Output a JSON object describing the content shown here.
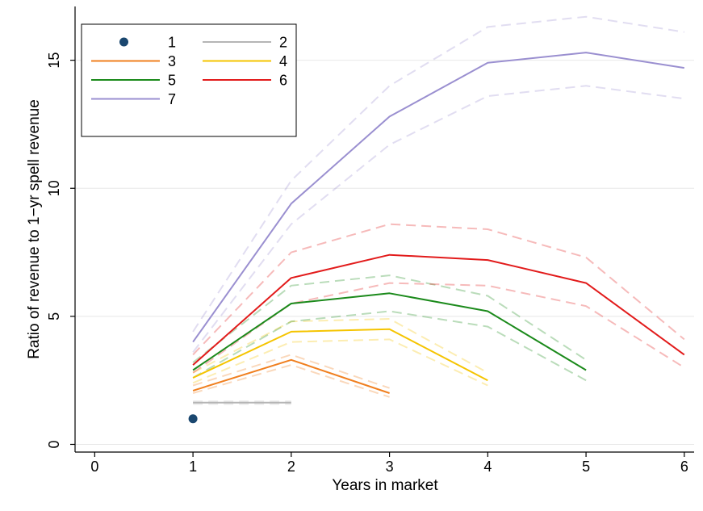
{
  "chart_data": {
    "type": "line",
    "title": "",
    "xlabel": "Years in market",
    "ylabel": "Ratio of revenue to 1−yr spell revenue",
    "xlim": [
      -0.2,
      6.1
    ],
    "ylim": [
      -0.3,
      17.1
    ],
    "xticks": [
      0,
      1,
      2,
      3,
      4,
      5,
      6
    ],
    "yticks": [
      0,
      5,
      10,
      15
    ],
    "grid": "horizontal",
    "legend_placement": "top-left",
    "series": [
      {
        "name": "1",
        "color": "#1a476f",
        "marker": "point",
        "x": [
          1
        ],
        "y": [
          1.0
        ],
        "lower": [],
        "upper": []
      },
      {
        "name": "2",
        "color": "#b5b5b5",
        "x": [
          1,
          2
        ],
        "y": [
          1.63,
          1.63
        ],
        "lower": [
          1.58,
          1.58
        ],
        "upper": [
          1.68,
          1.68
        ]
      },
      {
        "name": "3",
        "color": "#f07f1f",
        "x": [
          1,
          2,
          3
        ],
        "y": [
          2.1,
          3.3,
          2.0
        ],
        "lower": [
          2.0,
          3.1,
          1.85
        ],
        "upper": [
          2.3,
          3.5,
          2.2
        ]
      },
      {
        "name": "4",
        "color": "#f5c400",
        "x": [
          1,
          2,
          3,
          4
        ],
        "y": [
          2.6,
          4.4,
          4.5,
          2.5
        ],
        "lower": [
          2.4,
          4.0,
          4.1,
          2.3
        ],
        "upper": [
          2.8,
          4.8,
          4.9,
          2.8
        ]
      },
      {
        "name": "5",
        "color": "#1b8a1b",
        "x": [
          1,
          2,
          3,
          4,
          5
        ],
        "y": [
          2.9,
          5.5,
          5.9,
          5.2,
          2.9
        ],
        "lower": [
          2.6,
          4.8,
          5.2,
          4.6,
          2.5
        ],
        "upper": [
          3.2,
          6.2,
          6.6,
          5.8,
          3.3
        ]
      },
      {
        "name": "6",
        "color": "#e21b1b",
        "x": [
          1,
          2,
          3,
          4,
          5,
          6
        ],
        "y": [
          3.1,
          6.5,
          7.4,
          7.2,
          6.3,
          3.5
        ],
        "lower": [
          2.8,
          5.5,
          6.3,
          6.2,
          5.4,
          3.0
        ],
        "upper": [
          3.5,
          7.5,
          8.6,
          8.4,
          7.3,
          4.1
        ]
      },
      {
        "name": "7",
        "color": "#9a8fd0",
        "x": [
          1,
          2,
          3,
          4,
          5,
          6
        ],
        "y": [
          4.0,
          9.4,
          12.8,
          14.9,
          15.3,
          14.7
        ],
        "lower": [
          3.6,
          8.6,
          11.7,
          13.6,
          14.0,
          13.5
        ],
        "upper": [
          4.4,
          10.3,
          14.0,
          16.3,
          16.7,
          16.1
        ]
      }
    ]
  }
}
